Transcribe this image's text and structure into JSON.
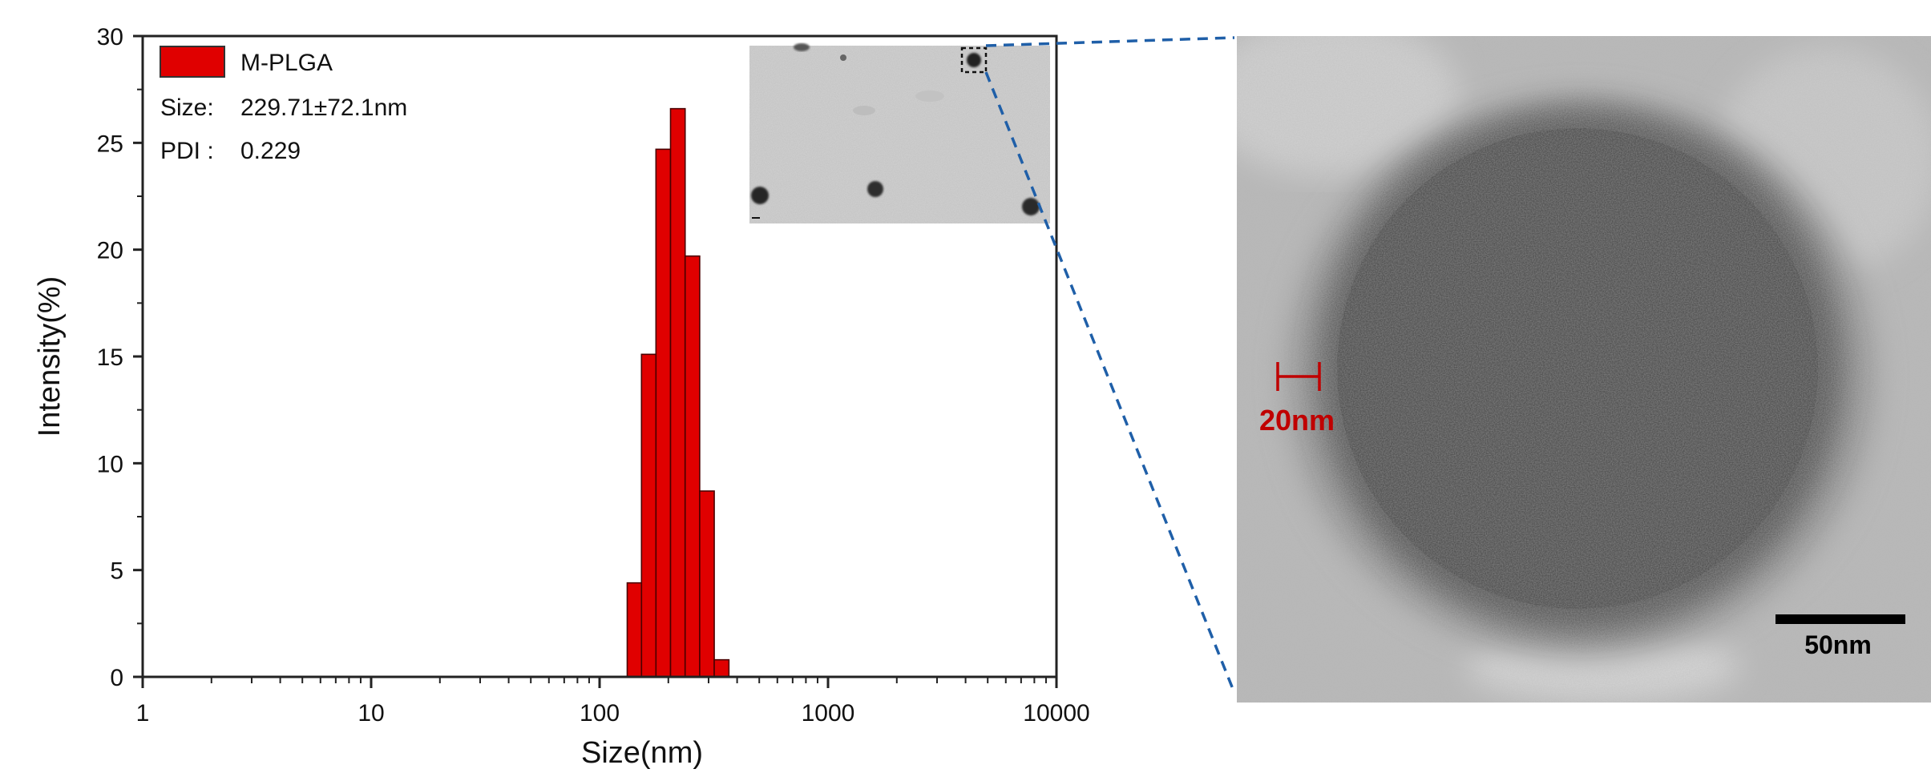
{
  "chart_data": {
    "type": "bar",
    "xlabel": "Size(nm)",
    "ylabel": "Intensity(%)",
    "x_scale": "log",
    "xlim": [
      1,
      10000
    ],
    "ylim": [
      0,
      30
    ],
    "x_ticks": [
      "1",
      "10",
      "100",
      "1000",
      "10000"
    ],
    "y_ticks": [
      "0",
      "5",
      "10",
      "15",
      "20",
      "25",
      "30"
    ],
    "grid": false,
    "legend": {
      "placement": "top-left",
      "entries": [
        "M-PLGA"
      ]
    },
    "series": [
      {
        "name": "M-PLGA",
        "color": "#e00000",
        "x": [
          142,
          164,
          190,
          220,
          255,
          295,
          342
        ],
        "values": [
          4.4,
          15.1,
          24.7,
          26.6,
          19.7,
          8.7,
          0.8
        ]
      }
    ],
    "annotations": {
      "size_label": "Size:",
      "size_value": "229.71±72.1nm",
      "pdi_label": "PDI :",
      "pdi_value": "0.229"
    }
  },
  "tem_zoom": {
    "scale_bar_small": "20nm",
    "scale_bar_large": "50nm"
  },
  "colors": {
    "bar_fill": "#e00000",
    "connector": "#1f5fa8",
    "scale_red": "#c00000"
  }
}
